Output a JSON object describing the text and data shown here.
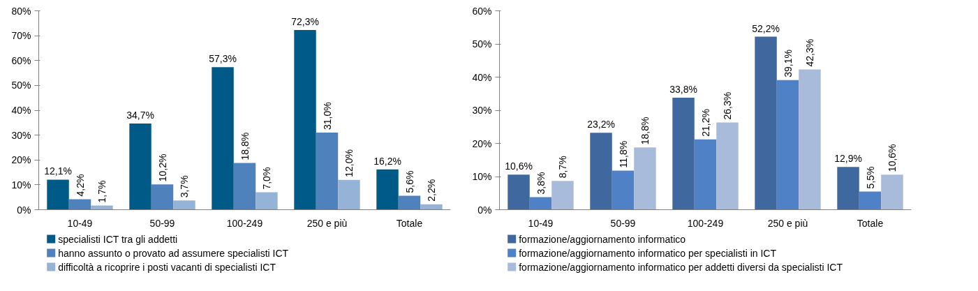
{
  "chart_data": [
    {
      "type": "bar",
      "categories": [
        "10-49",
        "50-99",
        "100-249",
        "250 e più",
        "Totale"
      ],
      "ylim": [
        0,
        80
      ],
      "yticks": [
        {
          "value": 0,
          "label": "0%"
        },
        {
          "value": 10,
          "label": "10%"
        },
        {
          "value": 20,
          "label": "20%"
        },
        {
          "value": 30,
          "label": "30%"
        },
        {
          "value": 40,
          "label": "40%"
        },
        {
          "value": 50,
          "label": "50%"
        },
        {
          "value": 60,
          "label": "60%"
        },
        {
          "value": 70,
          "label": "70%"
        },
        {
          "value": 80,
          "label": "80%"
        }
      ],
      "grid": false,
      "legend": "bottom",
      "series": [
        {
          "name": "specialisti ICT tra gli addetti",
          "color": "#005a87",
          "values": [
            12.1,
            34.7,
            57.3,
            72.3,
            16.2
          ],
          "value_labels": [
            "12,1%",
            "34,7%",
            "57,3%",
            "72,3%",
            "16,2%"
          ]
        },
        {
          "name": "hanno assunto o provato ad assumere specialisti ICT",
          "color": "#4f81bd",
          "values": [
            4.2,
            10.2,
            18.8,
            31.0,
            5.6
          ],
          "value_labels": [
            "4,2%",
            "10,2%",
            "18,8%",
            "31,0%",
            "5,6%"
          ]
        },
        {
          "name": "difficoltà a ricoprire i posti vacanti di specialisti ICT",
          "color": "#95b3d7",
          "values": [
            1.7,
            3.7,
            7.0,
            12.0,
            2.2
          ],
          "value_labels": [
            "1,7%",
            "3,7%",
            "7,0%",
            "12,0%",
            "2,2%"
          ]
        }
      ]
    },
    {
      "type": "bar",
      "categories": [
        "10-49",
        "50-99",
        "100-249",
        "250 e più",
        "Totale"
      ],
      "ylim": [
        0,
        60
      ],
      "yticks": [
        {
          "value": 0,
          "label": "0%"
        },
        {
          "value": 10,
          "label": "10%"
        },
        {
          "value": 20,
          "label": "20%"
        },
        {
          "value": 30,
          "label": "30%"
        },
        {
          "value": 40,
          "label": "40%"
        },
        {
          "value": 50,
          "label": "50%"
        },
        {
          "value": 60,
          "label": "60%"
        }
      ],
      "grid": false,
      "legend": "bottom",
      "series": [
        {
          "name": "formazione/aggiornamento informatico",
          "color": "#3f689f",
          "values": [
            10.6,
            23.2,
            33.8,
            52.2,
            12.9
          ],
          "value_labels": [
            "10,6%",
            "23,2%",
            "33,8%",
            "52,2%",
            "12,9%"
          ]
        },
        {
          "name": "formazione/aggiornamento informatico per specialisti in ICT",
          "color": "#4f81c7",
          "values": [
            3.8,
            11.8,
            21.2,
            39.1,
            5.5
          ],
          "value_labels": [
            "3,8%",
            "11,8%",
            "21,2%",
            "39,1%",
            "5,5%"
          ]
        },
        {
          "name": "formazione/aggiornamento informatico per addetti diversi da specialisti ICT",
          "color": "#a9bbdb",
          "values": [
            8.7,
            18.8,
            26.3,
            42.3,
            10.6
          ],
          "value_labels": [
            "8,7%",
            "18,8%",
            "26,3%",
            "42,3%",
            "10,6%"
          ]
        }
      ]
    }
  ]
}
